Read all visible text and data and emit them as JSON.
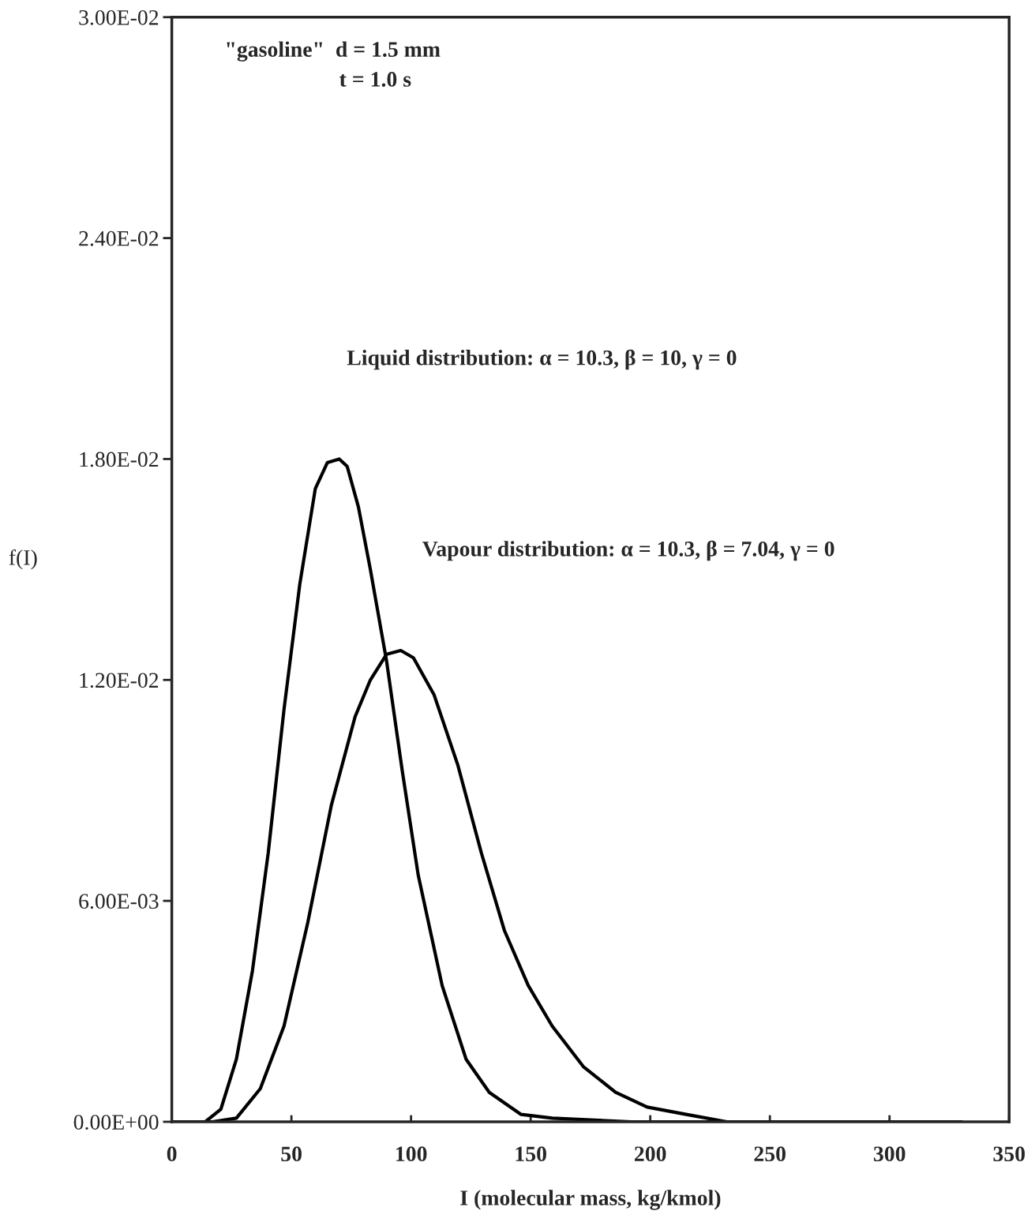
{
  "chart_data": {
    "type": "line",
    "xlabel": "I (molecular mass, kg/kmol)",
    "ylabel": "f(I)",
    "xlim": [
      0,
      350
    ],
    "xticks": [
      0,
      50,
      100,
      150,
      200,
      250,
      300,
      350
    ],
    "ylim": [
      0,
      0.03
    ],
    "yticks": [
      {
        "value": 0,
        "label": "0.00E+00"
      },
      {
        "value": 0.006,
        "label": "6.00E-03"
      },
      {
        "value": 0.012,
        "label": "1.20E-02"
      },
      {
        "value": 0.018,
        "label": "1.80E-02"
      },
      {
        "value": 0.024,
        "label": "2.40E-02"
      },
      {
        "value": 0.03,
        "label": "3.00E-02"
      }
    ],
    "grid": false,
    "marker": "none",
    "line_style": "solid",
    "series": [
      {
        "color": "#000000",
        "x": [
          0,
          14,
          20.5,
          27,
          33.7,
          40.3,
          46.9,
          53.5,
          60,
          65,
          70,
          73.3,
          78,
          83,
          89.8,
          96.4,
          103,
          113,
          123,
          132.7,
          146,
          159,
          192,
          330
        ],
        "values": [
          0,
          0,
          0.00034,
          0.0017,
          0.0041,
          0.0073,
          0.0112,
          0.0146,
          0.0172,
          0.0179,
          0.018,
          0.0178,
          0.0167,
          0.015,
          0.0125,
          0.0095,
          0.0067,
          0.0037,
          0.0017,
          0.0008,
          0.0002,
          0.0001,
          0,
          0
        ]
      },
      {
        "color": "#000000",
        "x": [
          0,
          17,
          27,
          37,
          46.9,
          56.8,
          66.7,
          76.6,
          83,
          89.8,
          95.7,
          101,
          109.6,
          119.5,
          129.4,
          139,
          149,
          159,
          172,
          185.5,
          198.7,
          215,
          232,
          258,
          330
        ],
        "values": [
          0,
          0,
          0.0001,
          0.0009,
          0.0026,
          0.0054,
          0.0086,
          0.011,
          0.012,
          0.0127,
          0.0128,
          0.0126,
          0.0116,
          0.0097,
          0.0073,
          0.0052,
          0.0037,
          0.0026,
          0.0015,
          0.0008,
          0.0004,
          0.0002,
          0,
          0,
          0
        ]
      }
    ],
    "annotations": [
      "\"gasoline\"  d = 1.5 mm",
      "t = 1.0 s",
      "Liquid distribution: α = 10.3, β = 10, γ = 0",
      "Vapour distribution: α = 10.3, β = 7.04, γ = 0"
    ]
  }
}
